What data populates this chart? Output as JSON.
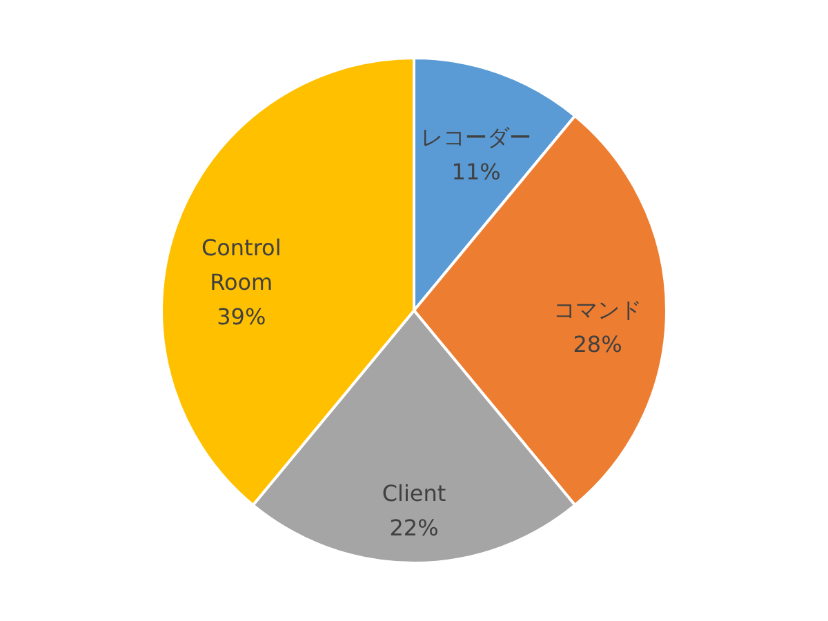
{
  "chart_data": {
    "type": "pie",
    "categories": [
      "レコーダー",
      "コマンド",
      "Client",
      "Control Room"
    ],
    "values": [
      11,
      28,
      22,
      39
    ],
    "colors": [
      "#5b9bd5",
      "#ed7d31",
      "#a5a5a5",
      "#ffc000"
    ],
    "value_labels": [
      "11%",
      "28%",
      "22%",
      "39%"
    ]
  }
}
